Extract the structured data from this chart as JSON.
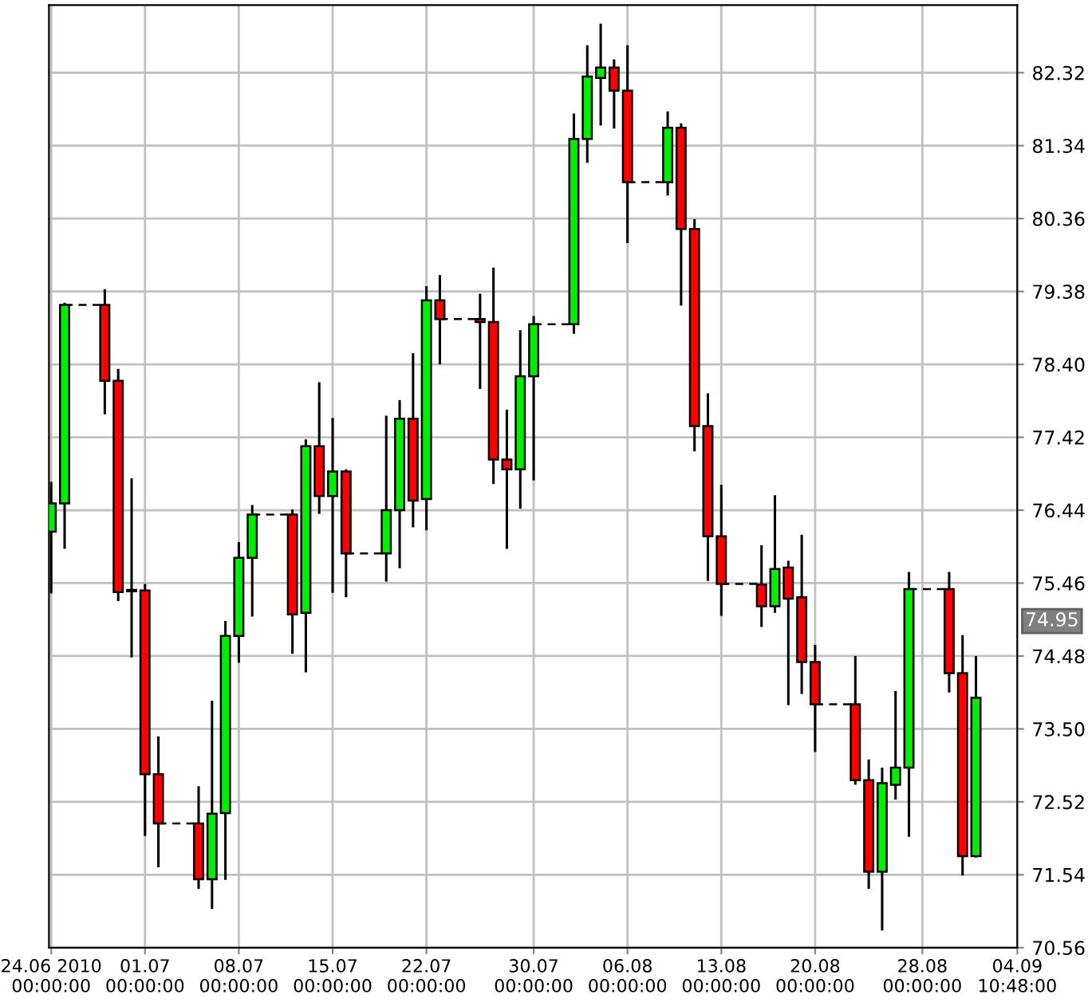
{
  "chart_data": {
    "type": "candlestick",
    "x": [
      "2010-06-24",
      "2010-06-25",
      "2010-06-28",
      "2010-06-29",
      "2010-06-30",
      "2010-07-01",
      "2010-07-02",
      "2010-07-05",
      "2010-07-06",
      "2010-07-07",
      "2010-07-08",
      "2010-07-09",
      "2010-07-12",
      "2010-07-13",
      "2010-07-14",
      "2010-07-15",
      "2010-07-16",
      "2010-07-19",
      "2010-07-20",
      "2010-07-21",
      "2010-07-22",
      "2010-07-23",
      "2010-07-26",
      "2010-07-27",
      "2010-07-28",
      "2010-07-29",
      "2010-07-30",
      "2010-08-02",
      "2010-08-03",
      "2010-08-04",
      "2010-08-05",
      "2010-08-06",
      "2010-08-09",
      "2010-08-10",
      "2010-08-11",
      "2010-08-12",
      "2010-08-13",
      "2010-08-16",
      "2010-08-17",
      "2010-08-18",
      "2010-08-19",
      "2010-08-20",
      "2010-08-23",
      "2010-08-24",
      "2010-08-25",
      "2010-08-26",
      "2010-08-27",
      "2010-08-30",
      "2010-08-31",
      "2010-09-01"
    ],
    "ohlc": [
      [
        76.15,
        76.82,
        75.32,
        76.53
      ],
      [
        76.53,
        79.23,
        75.92,
        79.2
      ],
      [
        79.2,
        79.41,
        77.73,
        78.18
      ],
      [
        78.18,
        78.34,
        75.22,
        75.34
      ],
      [
        75.35,
        76.87,
        74.46,
        75.35
      ],
      [
        75.36,
        75.45,
        72.06,
        72.89
      ],
      [
        72.89,
        73.4,
        71.64,
        72.23
      ],
      [
        72.23,
        72.73,
        71.35,
        71.48
      ],
      [
        71.48,
        73.88,
        71.08,
        72.36
      ],
      [
        72.37,
        74.95,
        71.47,
        74.75
      ],
      [
        74.75,
        76.01,
        74.39,
        75.8
      ],
      [
        75.8,
        76.51,
        75.01,
        76.38
      ],
      [
        76.38,
        76.45,
        74.51,
        75.04
      ],
      [
        75.06,
        77.39,
        74.26,
        77.3
      ],
      [
        77.3,
        78.16,
        76.39,
        76.63
      ],
      [
        76.63,
        77.68,
        75.33,
        76.96
      ],
      [
        76.96,
        76.99,
        75.27,
        75.86
      ],
      [
        75.86,
        77.71,
        75.48,
        76.44
      ],
      [
        76.44,
        77.92,
        75.66,
        77.67
      ],
      [
        77.67,
        78.55,
        76.21,
        76.57
      ],
      [
        76.59,
        79.45,
        76.17,
        79.26
      ],
      [
        79.26,
        79.6,
        78.4,
        79.01
      ],
      [
        79.01,
        79.35,
        78.07,
        78.97
      ],
      [
        78.97,
        79.7,
        76.79,
        77.12
      ],
      [
        77.12,
        77.79,
        75.92,
        76.99
      ],
      [
        76.99,
        78.86,
        76.46,
        78.24
      ],
      [
        78.24,
        79.05,
        76.84,
        78.94
      ],
      [
        78.94,
        81.77,
        78.81,
        81.43
      ],
      [
        81.43,
        82.69,
        81.11,
        82.27
      ],
      [
        82.25,
        82.98,
        81.61,
        82.39
      ],
      [
        82.39,
        82.5,
        81.57,
        82.08
      ],
      [
        82.08,
        82.69,
        80.03,
        80.85
      ],
      [
        80.85,
        81.8,
        80.67,
        81.58
      ],
      [
        81.58,
        81.64,
        79.19,
        80.22
      ],
      [
        80.22,
        80.35,
        77.23,
        77.57
      ],
      [
        77.57,
        78.01,
        75.49,
        76.09
      ],
      [
        76.09,
        76.78,
        75.02,
        75.45
      ],
      [
        75.44,
        75.97,
        74.87,
        75.15
      ],
      [
        75.15,
        76.64,
        75.06,
        75.65
      ],
      [
        75.67,
        75.76,
        73.82,
        75.25
      ],
      [
        75.27,
        76.11,
        73.97,
        74.4
      ],
      [
        74.4,
        74.63,
        73.19,
        73.83
      ],
      [
        73.83,
        74.48,
        72.75,
        72.81
      ],
      [
        72.81,
        73.09,
        71.35,
        71.58
      ],
      [
        71.58,
        72.98,
        70.79,
        72.77
      ],
      [
        72.75,
        74.01,
        72.55,
        72.98
      ],
      [
        72.98,
        75.61,
        72.05,
        75.38
      ],
      [
        75.38,
        75.61,
        73.99,
        74.25
      ],
      [
        74.25,
        74.76,
        71.53,
        71.79
      ],
      [
        71.79,
        74.48,
        71.77,
        73.92
      ]
    ],
    "colors": [
      "#00ee00",
      "#00ee00",
      "#ff0000",
      "#ff0000",
      "#ff0000",
      "#ff0000",
      "#ff0000",
      "#ff0000",
      "#00ee00",
      "#00ee00",
      "#00ee00",
      "#00ee00",
      "#ff0000",
      "#00ee00",
      "#ff0000",
      "#00ee00",
      "#ff0000",
      "#00ee00",
      "#00ee00",
      "#ff0000",
      "#00ee00",
      "#ff0000",
      "#ff0000",
      "#ff0000",
      "#ff0000",
      "#00ee00",
      "#00ee00",
      "#00ee00",
      "#00ee00",
      "#00ee00",
      "#ff0000",
      "#ff0000",
      "#00ee00",
      "#ff0000",
      "#ff0000",
      "#ff0000",
      "#ff0000",
      "#ff0000",
      "#00ee00",
      "#ff0000",
      "#ff0000",
      "#ff0000",
      "#ff0000",
      "#ff0000",
      "#00ee00",
      "#00ee00",
      "#00ee00",
      "#ff0000",
      "#ff0000",
      "#00ee00"
    ],
    "xlim": [
      "2010-06-23T20:00",
      "2010-09-04T02:00"
    ],
    "xticks": [
      {
        "value": "2010-06-24",
        "label": "24.06 2010\n00:00:00"
      },
      {
        "value": "2010-07-01",
        "label": "01.07\n00:00:00"
      },
      {
        "value": "2010-07-08",
        "label": "08.07\n00:00:00"
      },
      {
        "value": "2010-07-15",
        "label": "15.07\n00:00:00"
      },
      {
        "value": "2010-07-22",
        "label": "22.07\n00:00:00"
      },
      {
        "value": "2010-07-30",
        "label": "30.07\n00:00:00"
      },
      {
        "value": "2010-08-06",
        "label": "06.08\n00:00:00"
      },
      {
        "value": "2010-08-13",
        "label": "13.08\n00:00:00"
      },
      {
        "value": "2010-08-20",
        "label": "20.08\n00:00:00"
      },
      {
        "value": "2010-08-28",
        "label": "28.08\n00:00:00"
      },
      {
        "value": "2010-09-04T02:00",
        "label": "04.09\n10:48:00"
      }
    ],
    "ylim": [
      70.56,
      83.23
    ],
    "yticks": [
      {
        "value": 70.56,
        "label": "70.56"
      },
      {
        "value": 71.54,
        "label": "71.54"
      },
      {
        "value": 72.52,
        "label": "72.52"
      },
      {
        "value": 73.5,
        "label": "73.50"
      },
      {
        "value": 74.48,
        "label": "74.48"
      },
      {
        "value": 75.46,
        "label": "75.46"
      },
      {
        "value": 76.44,
        "label": "76.44"
      },
      {
        "value": 77.42,
        "label": "77.42"
      },
      {
        "value": 78.4,
        "label": "78.40"
      },
      {
        "value": 79.38,
        "label": "79.38"
      },
      {
        "value": 80.36,
        "label": "80.36"
      },
      {
        "value": 81.34,
        "label": "81.34"
      },
      {
        "value": 82.32,
        "label": "82.32"
      }
    ],
    "annotations": [
      "74.95"
    ],
    "series": [
      {
        "type": "line",
        "color": "#000000",
        "line_style": "dashed",
        "x": [
          "2010-06-25",
          "2010-06-28",
          null,
          "2010-07-02",
          "2010-07-05",
          null,
          "2010-07-09",
          "2010-07-12",
          null,
          "2010-07-16",
          "2010-07-19",
          null,
          "2010-07-23",
          "2010-07-26",
          null,
          "2010-07-30",
          "2010-08-02",
          null,
          "2010-08-06",
          "2010-08-09",
          null,
          "2010-08-13",
          "2010-08-16",
          null,
          "2010-08-20",
          "2010-08-23",
          null,
          "2010-08-27",
          "2010-08-30"
        ],
        "values": [
          79.2,
          79.2,
          null,
          72.23,
          72.23,
          null,
          76.38,
          76.38,
          null,
          75.86,
          75.86,
          null,
          79.01,
          79.01,
          null,
          78.94,
          78.94,
          null,
          80.85,
          80.85,
          null,
          75.45,
          75.45,
          null,
          73.83,
          73.83,
          null,
          75.38,
          75.38
        ]
      }
    ],
    "grid": true
  }
}
